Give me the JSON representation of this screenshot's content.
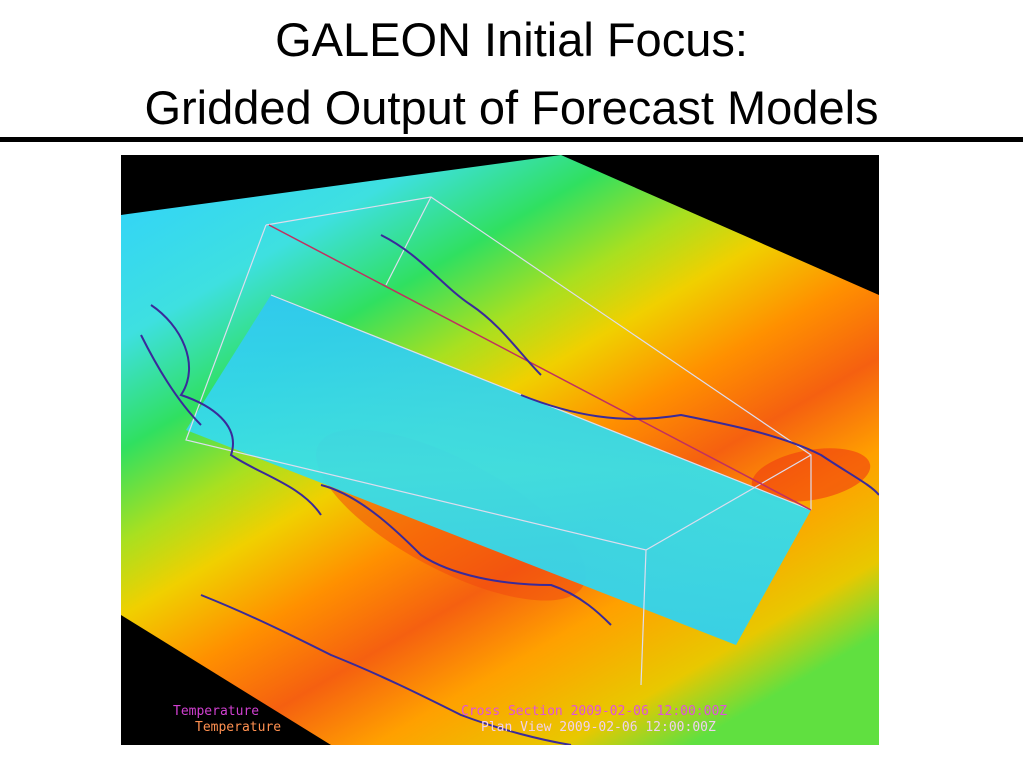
{
  "header": {
    "title_lines": [
      "GALEON Initial Focus:",
      "Gridded Output of Forecast Models"
    ]
  },
  "image": {
    "labels": [
      "Temperature",
      "Temperature",
      "Cross Section 2009-02-06 12:00:00Z",
      "Plan View 2009-02-06 12:00:00Z"
    ]
  }
}
